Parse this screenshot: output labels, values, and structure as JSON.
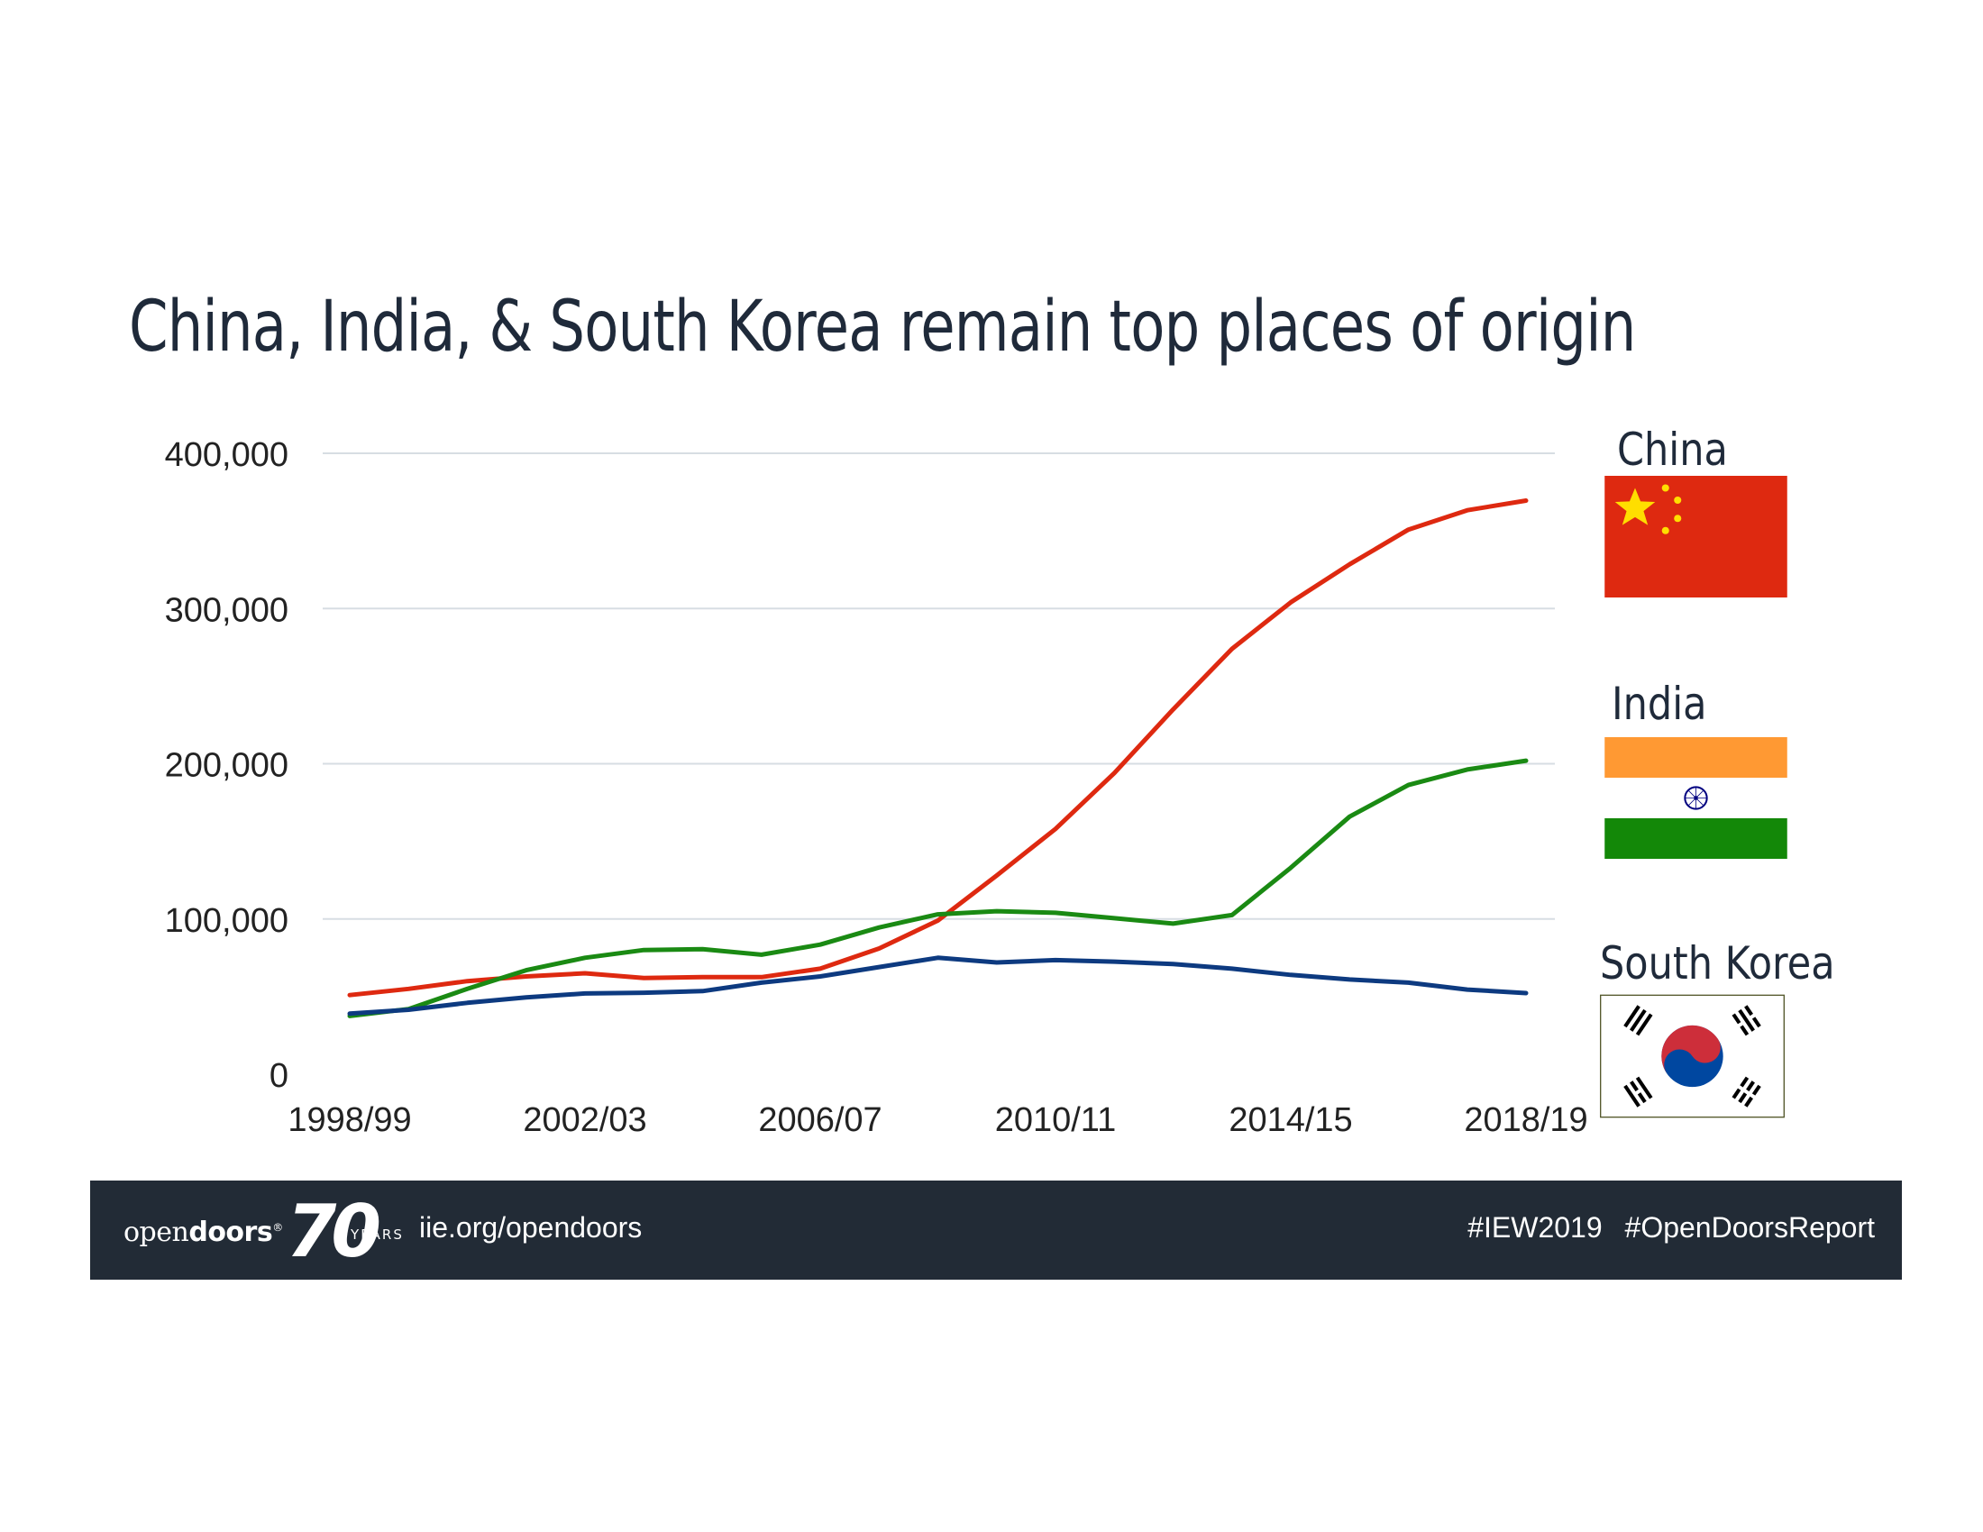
{
  "header": {
    "title": "China, India, & South Korea remain top places of origin"
  },
  "chart_data": {
    "type": "line",
    "title": "China, India, & South Korea remain top places of origin",
    "xlabel": "",
    "ylabel": "",
    "ylim": [
      0,
      400000
    ],
    "yticks": [
      "0",
      "100,000",
      "200,000",
      "300,000",
      "400,000"
    ],
    "ytick_values": [
      0,
      100000,
      200000,
      300000,
      400000
    ],
    "categories": [
      "1998/99",
      "1999/00",
      "2000/01",
      "2001/02",
      "2002/03",
      "2003/04",
      "2004/05",
      "2005/06",
      "2006/07",
      "2007/08",
      "2008/09",
      "2009/10",
      "2010/11",
      "2011/12",
      "2012/13",
      "2013/14",
      "2014/15",
      "2015/16",
      "2016/17",
      "2017/18",
      "2018/19"
    ],
    "xtick_labels": [
      "1998/99",
      "2002/03",
      "2006/07",
      "2010/11",
      "2014/15",
      "2018/19"
    ],
    "xtick_indices": [
      0,
      4,
      8,
      12,
      16,
      20
    ],
    "grid": true,
    "series": [
      {
        "name": "China",
        "color": "#de2910",
        "values": [
          51000,
          55000,
          60000,
          63000,
          65000,
          62000,
          62500,
          62500,
          68000,
          81000,
          99000,
          128000,
          158000,
          194000,
          235000,
          274000,
          304000,
          328500,
          350800,
          363300,
          369500
        ]
      },
      {
        "name": "India",
        "color": "#1a8a13",
        "values": [
          37500,
          42000,
          55000,
          67000,
          75000,
          80000,
          80500,
          77000,
          83500,
          94500,
          103000,
          105000,
          104000,
          100500,
          97000,
          102500,
          133000,
          165900,
          186300,
          196300,
          202000
        ]
      },
      {
        "name": "South Korea",
        "color": "#0d3a80",
        "values": [
          39000,
          41500,
          46000,
          49500,
          52000,
          52500,
          53500,
          59000,
          63000,
          69000,
          75000,
          72000,
          73500,
          72500,
          71000,
          68000,
          64000,
          61000,
          59000,
          54500,
          52250
        ]
      }
    ]
  },
  "legend": {
    "china": {
      "label": "China"
    },
    "india": {
      "label": "India"
    },
    "korea": {
      "label": "South Korea"
    }
  },
  "footer": {
    "logo_word_light": "open",
    "logo_word_bold": "doors",
    "logo_reg": "®",
    "logo_number": "70",
    "logo_years": "YEARS",
    "url": "iie.org/opendoors",
    "tags": "#IEW2019  #OpenDoorsReport"
  },
  "colors": {
    "footer_bg": "#222b36",
    "china": "#de2910",
    "india": "#1a8a13",
    "korea": "#0d3a80",
    "grid": "#d7dde3"
  },
  "icons": [
    "china-flag-icon",
    "india-flag-icon",
    "south-korea-flag-icon"
  ]
}
